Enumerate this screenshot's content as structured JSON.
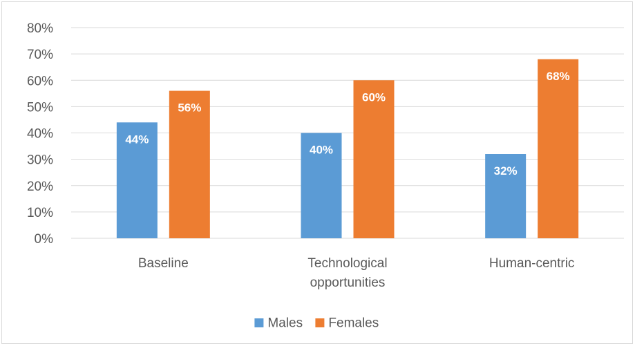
{
  "chart_data": {
    "type": "bar",
    "categories": [
      [
        "Baseline"
      ],
      [
        "Technological",
        "opportunities"
      ],
      [
        "Human-centric"
      ]
    ],
    "series": [
      {
        "name": "Males",
        "values": [
          0.44,
          0.4,
          0.32
        ],
        "labels": [
          "44%",
          "40%",
          "32%"
        ],
        "color": "#5b9bd5"
      },
      {
        "name": "Females",
        "values": [
          0.56,
          0.6,
          0.68
        ],
        "labels": [
          "56%",
          "60%",
          "68%"
        ],
        "color": "#ed7d31"
      }
    ],
    "ylim": [
      0,
      0.8
    ],
    "yticks": [
      "0%",
      "10%",
      "20%",
      "30%",
      "40%",
      "50%",
      "60%",
      "70%",
      "80%"
    ],
    "grid": true,
    "legend_position": "bottom"
  }
}
